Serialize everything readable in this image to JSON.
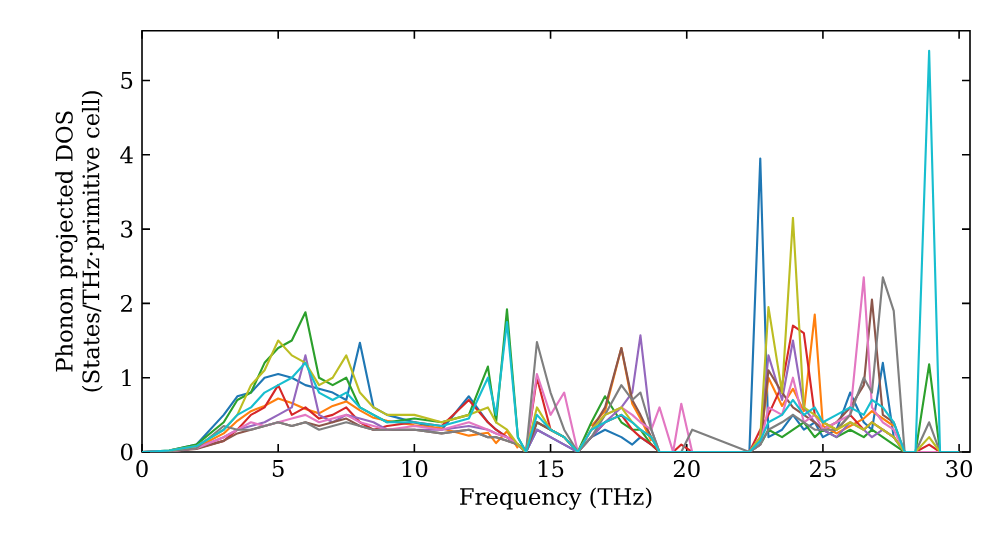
{
  "chart_data": {
    "type": "line",
    "xlabel": "Frequency (THz)",
    "ylabel": "Phonon projected DOS (States/THz·primitive cell)",
    "xlim": [
      0,
      30.4
    ],
    "ylim": [
      0,
      5.67
    ],
    "xticks": [
      0,
      5,
      10,
      15,
      20,
      25,
      30
    ],
    "yticks": [
      0,
      1,
      2,
      3,
      4,
      5
    ],
    "x": [
      0,
      1,
      2,
      3,
      3.5,
      4,
      4.5,
      5,
      5.5,
      6,
      6.5,
      7,
      7.5,
      8,
      8.5,
      9,
      10,
      11,
      12,
      12.7,
      13,
      13.4,
      13.8,
      14.1,
      14.5,
      15,
      15.5,
      16,
      16.5,
      17,
      17.6,
      18,
      18.3,
      18.7,
      19,
      19.5,
      19.8,
      20.2,
      22.3,
      22.7,
      23,
      23.5,
      23.9,
      24.3,
      24.7,
      25,
      25.5,
      26,
      26.5,
      26.8,
      27.2,
      27.6,
      28,
      28.4,
      28.9,
      29.3,
      30
    ],
    "series": [
      {
        "color": "#1f77b4",
        "values": [
          null,
          0.02,
          0.1,
          0.5,
          0.75,
          0.8,
          1.0,
          1.05,
          1.0,
          0.9,
          0.85,
          0.8,
          0.7,
          1.47,
          0.6,
          0.5,
          0.4,
          0.3,
          0.75,
          0.4,
          0.3,
          0.2,
          0.1,
          0,
          0.3,
          0.2,
          0.1,
          0,
          0.2,
          0.3,
          0.2,
          0.1,
          0.2,
          0.1,
          0,
          0,
          0,
          0,
          0,
          3.95,
          0.2,
          0.3,
          0.5,
          0.3,
          0.4,
          0.2,
          0.3,
          0.8,
          0.4,
          0.3,
          1.2,
          0.2,
          0,
          null,
          null,
          null,
          null
        ]
      },
      {
        "color": "#ff7f0e",
        "values": [
          null,
          null,
          0.06,
          0.25,
          0.42,
          0.55,
          0.62,
          0.72,
          0.66,
          0.58,
          0.52,
          0.62,
          0.68,
          0.56,
          0.46,
          0.42,
          0.36,
          0.32,
          0.22,
          0.26,
          0.12,
          0.28,
          0.05,
          null,
          null,
          null,
          null,
          null,
          0.35,
          0.55,
          1.4,
          0.65,
          0.45,
          0.15,
          null,
          null,
          null,
          null,
          null,
          0.12,
          1.0,
          0.62,
          0.85,
          0.55,
          1.85,
          0.35,
          0.25,
          0.35,
          0.45,
          0.55,
          0.45,
          0.35,
          null,
          null,
          null,
          null,
          null
        ]
      },
      {
        "color": "#2ca02c",
        "values": [
          0,
          0.02,
          0.1,
          0.4,
          0.7,
          0.8,
          1.2,
          1.4,
          1.5,
          1.88,
          1.0,
          0.9,
          1.0,
          0.6,
          0.5,
          0.4,
          0.45,
          0.4,
          0.5,
          1.15,
          0.4,
          1.92,
          0.2,
          0,
          0.4,
          0.3,
          0.2,
          0,
          0.4,
          0.75,
          0.4,
          0.3,
          0.3,
          0.1,
          0,
          0,
          0,
          0,
          0,
          0.1,
          0.3,
          0.2,
          0.3,
          0.4,
          0.2,
          0.3,
          0.2,
          0.3,
          0.2,
          0.3,
          0.2,
          0.1,
          0,
          0,
          1.18,
          0,
          0
        ]
      },
      {
        "color": "#d62728",
        "values": [
          0,
          0.01,
          0.05,
          0.15,
          0.3,
          0.5,
          0.6,
          0.9,
          0.5,
          0.6,
          0.45,
          0.5,
          0.6,
          0.4,
          0.3,
          0.35,
          0.4,
          0.35,
          0.7,
          0.4,
          0.3,
          0.2,
          0.1,
          0,
          1.0,
          0.3,
          0.2,
          0,
          0.2,
          0.4,
          0.5,
          0.3,
          0.2,
          0.1,
          0,
          0,
          0.1,
          0,
          0,
          0.3,
          0.5,
          0.9,
          1.7,
          1.6,
          0.5,
          0.4,
          0.3,
          0.5,
          0.3,
          0.4,
          0.3,
          0.2,
          0,
          0,
          0.1,
          0,
          0
        ]
      },
      {
        "color": "#9467bd",
        "values": [
          0,
          0.01,
          0.05,
          0.2,
          0.3,
          0.35,
          0.4,
          0.5,
          0.6,
          1.3,
          0.5,
          0.4,
          0.5,
          0.45,
          0.4,
          0.3,
          0.3,
          0.3,
          0.35,
          0.3,
          0.25,
          0.2,
          0.1,
          0,
          0.3,
          0.2,
          0.1,
          0,
          0.2,
          0.4,
          0.6,
          0.8,
          1.57,
          0.3,
          0,
          0,
          0,
          0,
          0,
          0.2,
          1.3,
          0.7,
          1.5,
          0.6,
          0.4,
          0.3,
          0.2,
          0.4,
          0.3,
          0.2,
          0.3,
          0.2,
          0,
          0,
          0,
          null,
          null
        ]
      },
      {
        "color": "#8c564b",
        "values": [
          0,
          0.01,
          0.04,
          0.15,
          0.25,
          0.3,
          0.35,
          0.4,
          0.35,
          0.4,
          0.35,
          0.4,
          0.45,
          0.35,
          0.3,
          0.3,
          0.3,
          0.25,
          0.3,
          0.2,
          0.2,
          0.15,
          0.1,
          0,
          0.4,
          0.3,
          0.2,
          0,
          0.3,
          0.6,
          1.4,
          0.7,
          0.5,
          0.2,
          0,
          0,
          0,
          0,
          0,
          0.1,
          1.1,
          0.8,
          0.6,
          0.5,
          0.4,
          0.3,
          0.4,
          0.6,
          0.9,
          2.05,
          0.5,
          0.4,
          0,
          0,
          null,
          null,
          null
        ]
      },
      {
        "color": "#e377c2",
        "values": [
          0,
          0.01,
          0.05,
          0.2,
          0.3,
          0.4,
          0.35,
          0.4,
          0.45,
          0.5,
          0.4,
          0.45,
          0.5,
          0.4,
          0.35,
          0.3,
          0.35,
          0.3,
          0.4,
          0.3,
          0.25,
          0.2,
          0.1,
          0,
          1.05,
          0.5,
          0.8,
          0,
          0.3,
          0.5,
          0.6,
          0.5,
          0.4,
          0.3,
          0.6,
          0,
          0.65,
          0,
          0,
          0.1,
          0.6,
          0.5,
          1.0,
          0.4,
          0.5,
          0.3,
          0.4,
          0.5,
          2.35,
          0.6,
          0.4,
          0.3,
          0,
          0,
          0,
          0,
          0
        ]
      },
      {
        "color": "#7f7f7f",
        "values": [
          0,
          0.01,
          0.05,
          0.35,
          0.3,
          0.3,
          0.35,
          0.4,
          0.35,
          0.4,
          0.3,
          0.35,
          0.4,
          0.35,
          0.3,
          0.3,
          0.3,
          0.25,
          0.3,
          0.2,
          0.2,
          0.15,
          0.1,
          0,
          1.48,
          0.8,
          0.3,
          0,
          0.2,
          0.5,
          0.9,
          0.7,
          0.8,
          0.3,
          0,
          0,
          0,
          0.3,
          0,
          0.1,
          0.3,
          0.4,
          0.5,
          0.4,
          0.3,
          0.3,
          0.3,
          0.5,
          1.0,
          0.8,
          2.35,
          1.9,
          0,
          0,
          0.4,
          0,
          0
        ]
      },
      {
        "color": "#bcbd22",
        "values": [
          null,
          0.02,
          0.08,
          0.3,
          0.5,
          0.9,
          1.1,
          1.5,
          1.3,
          1.2,
          0.9,
          1.0,
          1.3,
          0.8,
          0.6,
          0.5,
          0.5,
          0.4,
          0.5,
          0.6,
          0.4,
          0.3,
          0.1,
          0,
          0.6,
          0.3,
          0.2,
          0,
          0.3,
          0.5,
          0.6,
          0.4,
          0.3,
          0.2,
          0,
          0,
          0,
          0,
          0,
          0.2,
          1.95,
          0.8,
          3.15,
          0.6,
          0.5,
          0.4,
          0.3,
          0.4,
          0.3,
          0.4,
          0.3,
          0.2,
          0,
          0,
          0.2,
          0,
          0
        ]
      },
      {
        "color": "#17becf",
        "values": [
          0,
          0.02,
          0.08,
          0.3,
          0.5,
          0.6,
          0.8,
          0.9,
          1.0,
          1.2,
          0.8,
          0.7,
          0.8,
          0.6,
          0.5,
          0.4,
          0.4,
          0.35,
          0.45,
          1.0,
          0.5,
          1.75,
          0.2,
          0,
          0.5,
          0.3,
          0.2,
          0,
          0.3,
          0.4,
          0.5,
          0.4,
          0.3,
          0.2,
          0,
          0,
          0,
          0,
          0,
          0.15,
          0.4,
          0.5,
          0.7,
          0.5,
          0.6,
          0.4,
          0.5,
          0.6,
          0.5,
          0.7,
          0.6,
          0.4,
          0,
          0,
          5.4,
          0,
          0
        ]
      }
    ]
  }
}
